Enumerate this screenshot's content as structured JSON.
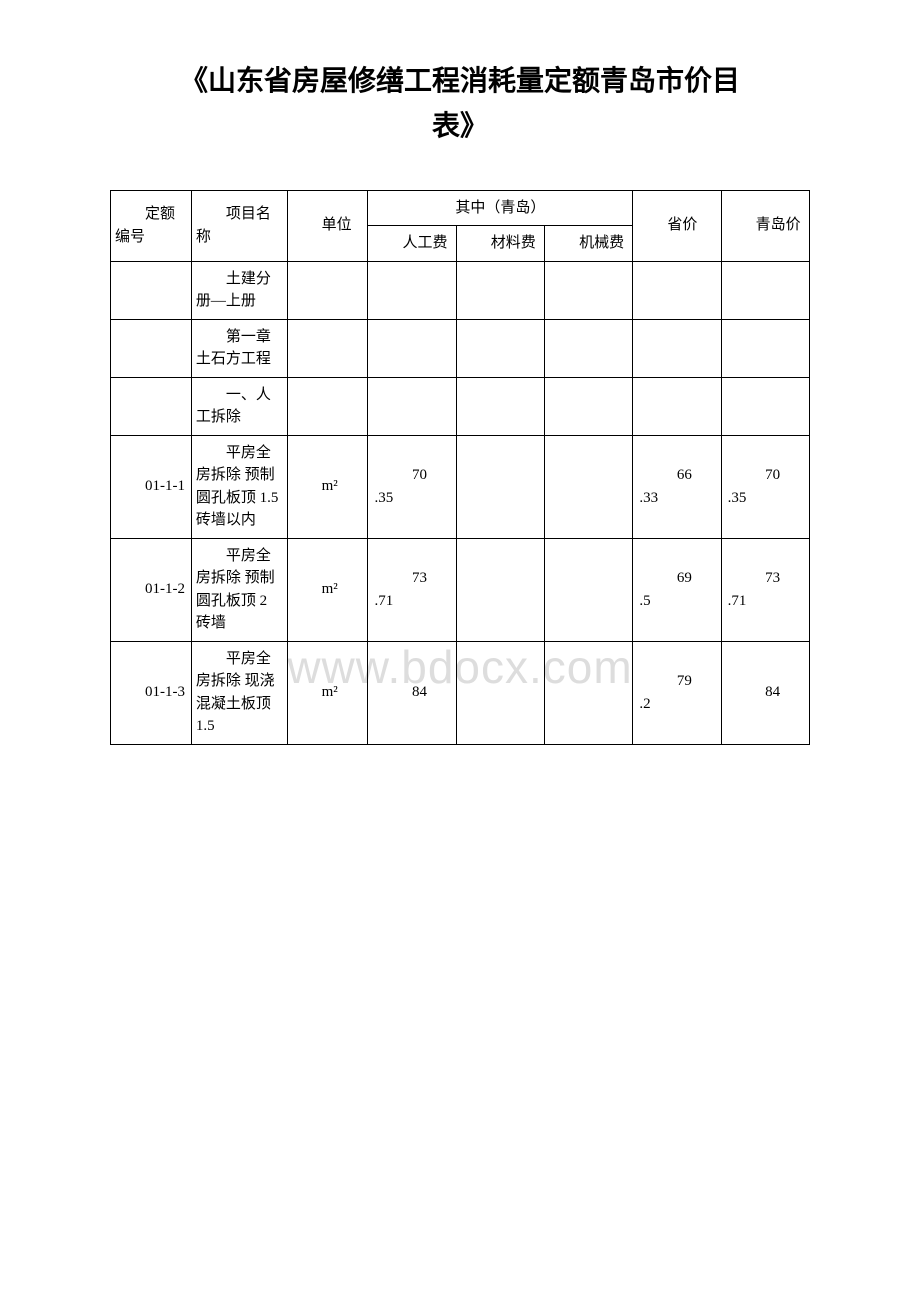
{
  "document": {
    "title_line1": "《山东省房屋修缮工程消耗量定额青岛市价目",
    "title_line2": "表》",
    "watermark": "www.bdocx.com"
  },
  "table": {
    "headers": {
      "code": "定额编号",
      "name": "项目名称",
      "unit": "单位",
      "qingdao_group": "其中（青岛）",
      "labor": "人工费",
      "material": "材料费",
      "machine": "机械费",
      "province_price": "省价",
      "qingdao_price": "青岛价"
    },
    "rows": [
      {
        "code": "",
        "name": "土建分册—上册",
        "unit": "",
        "labor": "",
        "material": "",
        "machine": "",
        "prov": "",
        "qd": ""
      },
      {
        "code": "",
        "name": "第一章 土石方工程",
        "unit": "",
        "labor": "",
        "material": "",
        "machine": "",
        "prov": "",
        "qd": ""
      },
      {
        "code": "",
        "name": "一、人工拆除",
        "unit": "",
        "labor": "",
        "material": "",
        "machine": "",
        "prov": "",
        "qd": ""
      },
      {
        "code": "01-1-1",
        "name": "平房全房拆除 预制圆孔板顶 1.5 砖墙以内",
        "unit": "m²",
        "labor_a": "70",
        "labor_b": ".35",
        "material": "",
        "machine": "",
        "prov_a": "66",
        "prov_b": ".33",
        "qd_a": "70",
        "qd_b": ".35"
      },
      {
        "code": "01-1-2",
        "name": "平房全房拆除 预制圆孔板顶 2 砖墙",
        "unit": "m²",
        "labor_a": "73",
        "labor_b": ".71",
        "material": "",
        "machine": "",
        "prov_a": "69",
        "prov_b": ".5",
        "qd_a": "73",
        "qd_b": ".71"
      },
      {
        "code": "01-1-3",
        "name": "平房全房拆除 现浇混凝土板顶 1.5",
        "unit": "m²",
        "labor_a": "84",
        "labor_b": "",
        "material": "",
        "machine": "",
        "prov_a": "79",
        "prov_b": ".2",
        "qd_a": "84",
        "qd_b": ""
      }
    ]
  }
}
